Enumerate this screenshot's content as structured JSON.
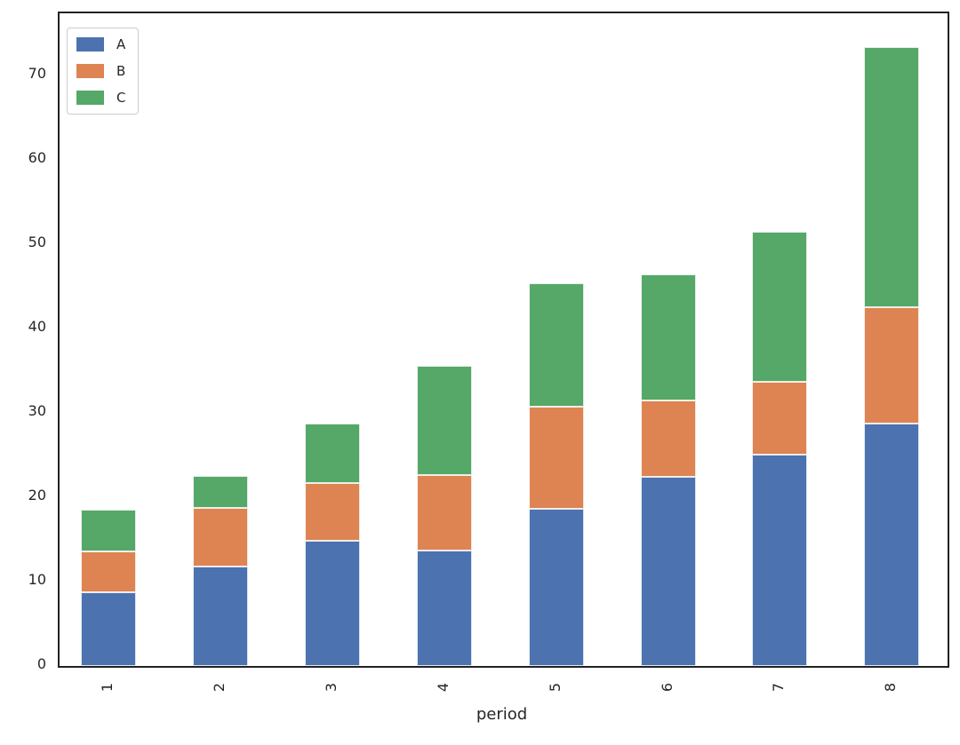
{
  "chart_data": {
    "type": "bar",
    "stacked": true,
    "title": "",
    "xlabel": "period",
    "ylabel": "",
    "categories": [
      "1",
      "2",
      "3",
      "4",
      "5",
      "6",
      "7",
      "8"
    ],
    "series": [
      {
        "name": "A",
        "color": "#4C72B0",
        "values": [
          8.7,
          11.8,
          14.8,
          13.7,
          18.6,
          22.4,
          25.1,
          28.7
        ]
      },
      {
        "name": "B",
        "color": "#DD8452",
        "values": [
          4.9,
          6.9,
          6.9,
          8.9,
          12.2,
          9.1,
          8.6,
          13.8
        ]
      },
      {
        "name": "C",
        "color": "#55A868",
        "values": [
          4.9,
          3.8,
          7.0,
          13.0,
          14.6,
          14.9,
          17.8,
          30.9
        ]
      }
    ],
    "totals": [
      18.5,
      22.5,
      28.7,
      35.6,
      45.4,
      46.4,
      51.5,
      73.4
    ],
    "ylim": [
      0,
      77.4
    ],
    "yticks": [
      0,
      10,
      20,
      30,
      40,
      50,
      60,
      70
    ],
    "x_tick_rotation": 90,
    "grid": false,
    "legend_position": "upper left",
    "style": {
      "background": "#ffffff",
      "spine_color": "#222222",
      "text_color": "#262626",
      "bar_edge_color": "#ffffff"
    }
  }
}
